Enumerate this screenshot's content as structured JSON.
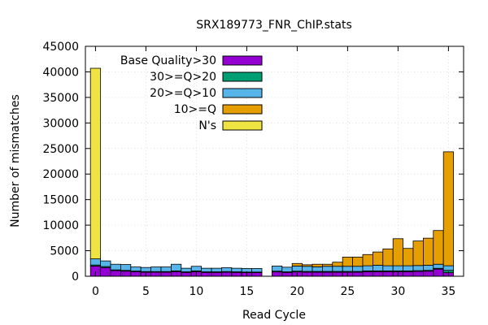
{
  "chart_data": {
    "type": "bar",
    "stacked": true,
    "title": "SRX189773_FNR_ChIP.stats",
    "xlabel": "Read Cycle",
    "ylabel": "Number of mismatches",
    "xlim": [
      -1,
      36.5
    ],
    "ylim": [
      0,
      45000
    ],
    "xticks": [
      0,
      5,
      10,
      15,
      20,
      25,
      30,
      35
    ],
    "yticks": [
      0,
      5000,
      10000,
      15000,
      20000,
      25000,
      30000,
      35000,
      40000,
      45000
    ],
    "grid": true,
    "legend_position": "top-left",
    "x": [
      0,
      1,
      2,
      3,
      4,
      5,
      6,
      7,
      8,
      9,
      10,
      11,
      12,
      13,
      14,
      15,
      16,
      17,
      18,
      19,
      20,
      21,
      22,
      23,
      24,
      25,
      26,
      27,
      28,
      29,
      30,
      31,
      32,
      33,
      34,
      35
    ],
    "series": [
      {
        "name": "Base Quality>30",
        "color": "#9400d3",
        "values": [
          2000,
          1700,
          1100,
          1000,
          900,
          800,
          800,
          800,
          900,
          750,
          900,
          750,
          750,
          800,
          750,
          700,
          700,
          0,
          850,
          750,
          850,
          800,
          800,
          800,
          800,
          800,
          800,
          900,
          900,
          900,
          900,
          900,
          950,
          1000,
          1400,
          700
        ]
      },
      {
        "name": "30>=Q>20",
        "color": "#009e73",
        "values": [
          200,
          200,
          150,
          150,
          120,
          120,
          120,
          120,
          150,
          120,
          150,
          120,
          120,
          120,
          120,
          120,
          120,
          0,
          150,
          120,
          150,
          150,
          150,
          150,
          150,
          150,
          150,
          150,
          150,
          150,
          150,
          150,
          150,
          150,
          150,
          450
        ]
      },
      {
        "name": "20>=Q>10",
        "color": "#56b4e9",
        "values": [
          1200,
          1100,
          1100,
          1150,
          800,
          800,
          900,
          900,
          1300,
          700,
          900,
          700,
          700,
          750,
          700,
          700,
          700,
          0,
          1000,
          900,
          1000,
          1000,
          900,
          1000,
          1000,
          1000,
          1000,
          1000,
          1100,
          1000,
          1000,
          1000,
          1000,
          1000,
          800,
          900
        ]
      },
      {
        "name": "10>=Q",
        "color": "#e69f00",
        "values": [
          0,
          0,
          0,
          0,
          0,
          0,
          0,
          0,
          0,
          0,
          0,
          0,
          0,
          0,
          0,
          0,
          0,
          0,
          0,
          0,
          500,
          300,
          500,
          400,
          800,
          1800,
          1800,
          2200,
          2600,
          3300,
          5300,
          3400,
          4800,
          5300,
          6600,
          22300
        ]
      },
      {
        "name": "N's",
        "color": "#f0e442",
        "values": [
          37300,
          0,
          0,
          0,
          0,
          0,
          0,
          0,
          0,
          0,
          0,
          0,
          0,
          0,
          0,
          0,
          0,
          0,
          0,
          0,
          0,
          0,
          0,
          0,
          0,
          0,
          0,
          0,
          0,
          0,
          0,
          0,
          0,
          0,
          0,
          0
        ]
      }
    ]
  }
}
